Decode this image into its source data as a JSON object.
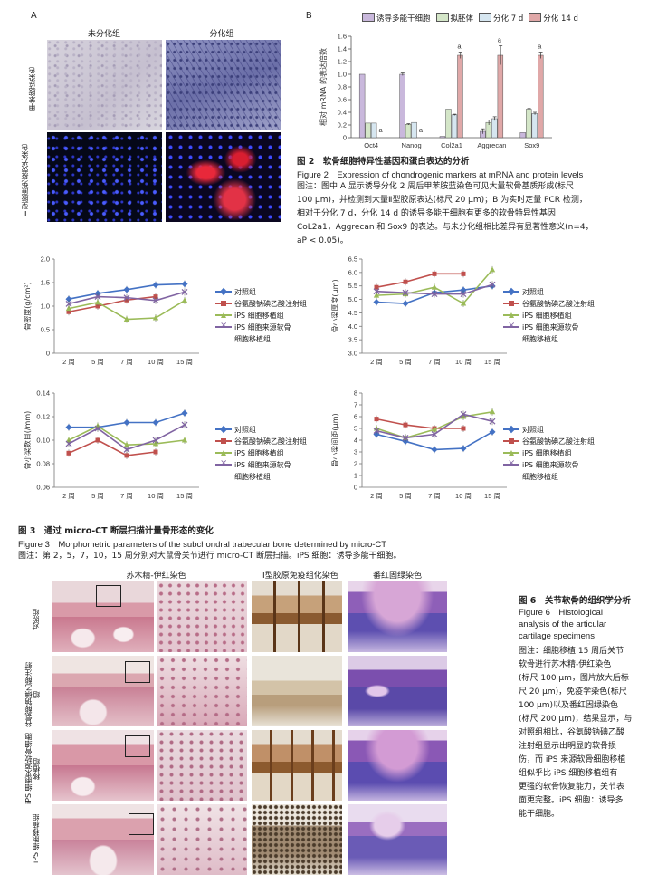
{
  "fig2": {
    "panel_a_label": "A",
    "panel_b_label": "B",
    "col_undiff": "未分化组",
    "col_diff": "分化组",
    "row1_label": "甲苯胺蓝染色",
    "row2_label": "Ⅱ型胶原免疫荧光染色",
    "title_cn": "图 2　软骨细胞特异性基因和蛋白表达的分析",
    "title_en": "Figure 2　Expression of chondrogenic markers at mRNA and protein levels",
    "note_lines": [
      "图注：图中 A 显示诱导分化 2 周后甲苯胺蓝染色可见大量软骨基质形成(标尺",
      "100 μm)，并检测到大量Ⅱ型胶原表达(标尺 20 μm)；B 为实时定量 PCR 检测，",
      "相对于分化 7 d，分化 14 d 的诱导多能干细胞有更多的软骨特异性基因",
      "CoL2a1，Aggrecan 和 Sox9 的表达。与未分化组相比差异有显著性意义(n=4，",
      "aP < 0.05)。"
    ]
  },
  "chart_data": [
    {
      "type": "bar",
      "panel": "B",
      "ylabel": "相对 mRNA 的表达倍数",
      "ylim": [
        0,
        1.6
      ],
      "yticks": [
        "0",
        "0.2",
        "0.4",
        "0.6",
        "0.8",
        "1.0",
        "1.2",
        "1.4",
        "1.6"
      ],
      "categories": [
        "Oct4",
        "Nanog",
        "Col2a1",
        "Aggrecan",
        "Sox9"
      ],
      "series": [
        {
          "name": "诱导多能干细胞",
          "color": "#c9b8dc",
          "values": [
            1.0,
            1.0,
            0.02,
            0.1,
            0.08
          ],
          "err": [
            0,
            0.02,
            0,
            0.04,
            0
          ]
        },
        {
          "name": "拟胚体",
          "color": "#d4e6c8",
          "values": [
            0.23,
            0.21,
            0.45,
            0.24,
            0.45
          ],
          "err": [
            0,
            0.01,
            0,
            0.04,
            0.01
          ]
        },
        {
          "name": "分化 7 d",
          "color": "#d6e6f0",
          "values": [
            0.23,
            0.24,
            0.36,
            0.3,
            0.38
          ],
          "err": [
            0,
            0,
            0.01,
            0.03,
            0.02
          ]
        },
        {
          "name": "分化 14 d",
          "color": "#e0a8a8",
          "values": [
            0,
            0,
            1.3,
            1.3,
            1.3
          ],
          "err": [
            0,
            0,
            0.05,
            0.15,
            0.05
          ]
        }
      ],
      "annotations": [
        "a",
        "a",
        "a",
        "a",
        "a"
      ]
    },
    {
      "type": "line",
      "ylabel": "骨密度(g/cm²)",
      "categories": [
        "2 周",
        "5 周",
        "7 周",
        "10 周",
        "15 周"
      ],
      "ylim": [
        0,
        2.0
      ],
      "yticks": [
        "0",
        "0.5",
        "1.0",
        "1.5",
        "2.0"
      ],
      "series": [
        {
          "name": "对照组",
          "values": [
            1.15,
            1.27,
            1.35,
            1.45,
            1.47
          ]
        },
        {
          "name": "谷氨酸钠碘乙酸注射组",
          "values": [
            0.88,
            1.0,
            1.13,
            1.2,
            null
          ]
        },
        {
          "name": "iPS 细胞移植组",
          "values": [
            0.95,
            1.08,
            0.72,
            0.75,
            1.12
          ]
        },
        {
          "name": "iPS 细胞来源软骨细胞移植组",
          "values": [
            1.05,
            1.2,
            1.18,
            1.12,
            1.3
          ]
        }
      ]
    },
    {
      "type": "line",
      "ylabel": "骨小梁厚度(μm)",
      "categories": [
        "2 周",
        "5 周",
        "7 周",
        "10 周",
        "15 周"
      ],
      "ylim": [
        3.0,
        6.5
      ],
      "yticks": [
        "3.0",
        "3.5",
        "4.0",
        "4.5",
        "5.0",
        "5.5",
        "6.0",
        "6.5"
      ],
      "series": [
        {
          "name": "对照组",
          "values": [
            4.9,
            4.85,
            5.25,
            5.35,
            5.5
          ]
        },
        {
          "name": "谷氨酸钠碘乙酸注射组",
          "values": [
            5.45,
            5.65,
            5.95,
            5.95,
            null
          ]
        },
        {
          "name": "iPS 细胞移植组",
          "values": [
            5.15,
            5.2,
            5.45,
            4.85,
            6.1
          ]
        },
        {
          "name": "iPS 细胞来源软骨细胞移植组",
          "values": [
            5.3,
            5.25,
            5.2,
            5.2,
            5.55
          ]
        }
      ]
    },
    {
      "type": "line",
      "ylabel": "骨小梁数目(/mm)",
      "categories": [
        "2 周",
        "5 周",
        "7 周",
        "10 周",
        "15 周"
      ],
      "ylim": [
        0.06,
        0.14
      ],
      "yticks": [
        "0.06",
        "0.08",
        "0.10",
        "0.12",
        "0.14"
      ],
      "series": [
        {
          "name": "对照组",
          "values": [
            0.111,
            0.111,
            0.115,
            0.115,
            0.123
          ]
        },
        {
          "name": "谷氨酸钠碘乙酸注射组",
          "values": [
            0.089,
            0.1,
            0.087,
            0.09,
            null
          ]
        },
        {
          "name": "iPS 细胞移植组",
          "values": [
            0.1,
            0.112,
            0.096,
            0.097,
            0.1
          ]
        },
        {
          "name": "iPS 细胞来源软骨细胞移植组",
          "values": [
            0.097,
            0.11,
            0.092,
            0.1,
            0.113
          ]
        }
      ]
    },
    {
      "type": "line",
      "ylabel": "骨小梁间距(μm)",
      "categories": [
        "2 周",
        "5 周",
        "7 周",
        "10 周",
        "15 周"
      ],
      "ylim": [
        0,
        8
      ],
      "yticks": [
        "0",
        "1",
        "2",
        "3",
        "4",
        "5",
        "6",
        "7",
        "8"
      ],
      "series": [
        {
          "name": "对照组",
          "values": [
            4.5,
            3.9,
            3.2,
            3.3,
            4.7
          ]
        },
        {
          "name": "谷氨酸钠碘乙酸注射组",
          "values": [
            5.8,
            5.3,
            5.0,
            5.0,
            null
          ]
        },
        {
          "name": "iPS 细胞移植组",
          "values": [
            5.0,
            4.2,
            4.9,
            6.0,
            6.4
          ]
        },
        {
          "name": "iPS 细胞来源软骨细胞移植组",
          "values": [
            4.8,
            4.2,
            4.5,
            6.2,
            5.6
          ]
        }
      ]
    }
  ],
  "fig3": {
    "legend": [
      "对照组",
      "谷氨酸钠碘乙酸注射组",
      "iPS 细胞移植组",
      "iPS 细胞来源软骨",
      "细胞移植组"
    ],
    "legend_b": [
      "对照组",
      "谷氨酸钠碘乙酸注射组",
      "iPS 细胞移植组",
      "iPS 细胞来源软骨",
      "细胞移植组"
    ],
    "legend_d": [
      "对照组",
      "谷氨酸钠碘乙酸注射组",
      "iPS 细胞移植组",
      "iPS 细胞来源软骨",
      "细胞移植组"
    ],
    "series_colors": [
      "#4472c4",
      "#c0504d",
      "#9bbb59",
      "#8064a2"
    ],
    "title_cn": "图 3　通过 micro-CT 断层扫描计量骨形态的变化",
    "title_en": "Figure 3　Morphometric parameters of the subchondral trabecular bone determined by micro-CT",
    "note": "图注：第 2，5，7，10，15 周分别对大鼠骨关节进行 micro-CT 断层扫描。iPS 细胞：诱导多能干细胞。"
  },
  "fig6": {
    "col_he": "苏木精-伊红染色",
    "col_ihc": "Ⅱ型胶原免疫组化染色",
    "col_safo": "番红固绿染色",
    "rows": [
      "对照组",
      "谷氨酸钠碘乙酸注射组",
      "iPS 细胞来源软骨细胞移植组",
      "iPS 细胞移植组"
    ],
    "title_cn": "图 6　关节软骨的组织学分析",
    "title_en_lines": [
      "Figure 6　Histological",
      "analysis of the articular",
      "cartilage specimens"
    ],
    "note_lines": [
      "图注：细胞移植 15 周后关节",
      "软骨进行苏木精-伊红染色",
      "(标尺 100 μm，图片放大后标",
      "尺 20 μm)，免疫学染色(标尺",
      "100 μm)以及番红固绿染色",
      "(标尺 200 μm)，结果显示，与",
      "对照组相比，谷氨酸钠碘乙酸",
      "注射组显示出明显的软骨损",
      "伤，而 iPS 来源软骨细胞移植",
      "组似乎比 iPS 细胞移植组有",
      "更强的软骨恢复能力，关节表",
      "面更完整。iPS 细胞：诱导多",
      "能干细胞。"
    ]
  }
}
